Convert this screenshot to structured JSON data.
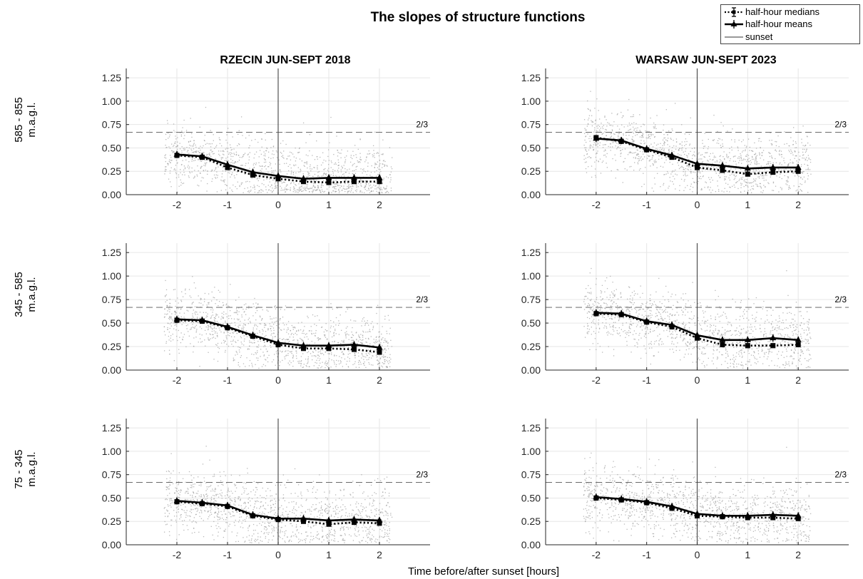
{
  "figure": {
    "title": "The slopes of structure functions",
    "xlabel": "Time before/after sunset [hours]",
    "column_titles": [
      "RZECIN JUN-SEPT 2018",
      "WARSAW JUN-SEPT 2023"
    ],
    "row_labels": [
      {
        "line1": "585 - 855",
        "line2": "m.a.g.l."
      },
      {
        "line1": "345 - 585",
        "line2": "m.a.g.l."
      },
      {
        "line1": "75 - 345",
        "line2": "m.a.g.l."
      }
    ],
    "legend": {
      "medians": "half-hour medians",
      "means": "half-hour means",
      "sunset": "sunset"
    },
    "reference_label": "2/3"
  },
  "chart_data": [
    {
      "type": "line",
      "panel": "RZECIN JUN-SEPT 2018 / 585 - 855 m.a.g.l.",
      "x": [
        -2,
        -1.5,
        -1,
        -0.5,
        0,
        0.5,
        1,
        1.5,
        2
      ],
      "series": [
        {
          "name": "half-hour means",
          "values": [
            0.43,
            0.41,
            0.32,
            0.24,
            0.2,
            0.17,
            0.18,
            0.18,
            0.18
          ]
        },
        {
          "name": "half-hour medians",
          "values": [
            0.42,
            0.4,
            0.29,
            0.21,
            0.17,
            0.14,
            0.13,
            0.14,
            0.14
          ]
        }
      ],
      "reference_lines": {
        "sunset_x": 0,
        "y": 0.6667
      },
      "xlim": [
        -3,
        3
      ],
      "ylim": [
        0,
        1.35
      ],
      "xticks": [
        "-2",
        "-1",
        "0",
        "1",
        "2"
      ],
      "yticks": [
        "0.00",
        "0.25",
        "0.50",
        "0.75",
        "1.00",
        "1.25"
      ],
      "grid": true
    },
    {
      "type": "line",
      "panel": "WARSAW JUN-SEPT 2023 / 585 - 855 m.a.g.l.",
      "x": [
        -2,
        -1.5,
        -1,
        -0.5,
        0,
        0.5,
        1,
        1.5,
        2
      ],
      "series": [
        {
          "name": "half-hour means",
          "values": [
            0.6,
            0.58,
            0.49,
            0.42,
            0.33,
            0.31,
            0.28,
            0.29,
            0.29
          ]
        },
        {
          "name": "half-hour medians",
          "values": [
            0.61,
            0.57,
            0.48,
            0.4,
            0.29,
            0.26,
            0.22,
            0.24,
            0.25
          ]
        }
      ],
      "reference_lines": {
        "sunset_x": 0,
        "y": 0.6667
      },
      "xlim": [
        -3,
        3
      ],
      "ylim": [
        0,
        1.35
      ],
      "xticks": [
        "-2",
        "-1",
        "0",
        "1",
        "2"
      ],
      "yticks": [
        "0.00",
        "0.25",
        "0.50",
        "0.75",
        "1.00",
        "1.25"
      ],
      "grid": true
    },
    {
      "type": "line",
      "panel": "RZECIN JUN-SEPT 2018 / 345 - 585 m.a.g.l.",
      "x": [
        -2,
        -1.5,
        -1,
        -0.5,
        0,
        0.5,
        1,
        1.5,
        2
      ],
      "series": [
        {
          "name": "half-hour means",
          "values": [
            0.54,
            0.53,
            0.46,
            0.37,
            0.29,
            0.26,
            0.26,
            0.27,
            0.24
          ]
        },
        {
          "name": "half-hour medians",
          "values": [
            0.53,
            0.52,
            0.45,
            0.36,
            0.27,
            0.23,
            0.23,
            0.22,
            0.19
          ]
        }
      ],
      "reference_lines": {
        "sunset_x": 0,
        "y": 0.6667
      },
      "xlim": [
        -3,
        3
      ],
      "ylim": [
        0,
        1.35
      ],
      "xticks": [
        "-2",
        "-1",
        "0",
        "1",
        "2"
      ],
      "yticks": [
        "0.00",
        "0.25",
        "0.50",
        "0.75",
        "1.00",
        "1.25"
      ],
      "grid": true
    },
    {
      "type": "line",
      "panel": "WARSAW JUN-SEPT 2023 / 345 - 585 m.a.g.l.",
      "x": [
        -2,
        -1.5,
        -1,
        -0.5,
        0,
        0.5,
        1,
        1.5,
        2
      ],
      "series": [
        {
          "name": "half-hour means",
          "values": [
            0.61,
            0.6,
            0.52,
            0.48,
            0.37,
            0.32,
            0.32,
            0.34,
            0.32
          ]
        },
        {
          "name": "half-hour medians",
          "values": [
            0.6,
            0.59,
            0.51,
            0.46,
            0.34,
            0.27,
            0.26,
            0.26,
            0.27
          ]
        }
      ],
      "reference_lines": {
        "sunset_x": 0,
        "y": 0.6667
      },
      "xlim": [
        -3,
        3
      ],
      "ylim": [
        0,
        1.35
      ],
      "xticks": [
        "-2",
        "-1",
        "0",
        "1",
        "2"
      ],
      "yticks": [
        "0.00",
        "0.25",
        "0.50",
        "0.75",
        "1.00",
        "1.25"
      ],
      "grid": true
    },
    {
      "type": "line",
      "panel": "RZECIN JUN-SEPT 2018 / 75 - 345 m.a.g.l.",
      "x": [
        -2,
        -1.5,
        -1,
        -0.5,
        0,
        0.5,
        1,
        1.5,
        2
      ],
      "series": [
        {
          "name": "half-hour means",
          "values": [
            0.47,
            0.45,
            0.42,
            0.32,
            0.28,
            0.28,
            0.26,
            0.27,
            0.26
          ]
        },
        {
          "name": "half-hour medians",
          "values": [
            0.46,
            0.44,
            0.41,
            0.31,
            0.27,
            0.25,
            0.22,
            0.24,
            0.23
          ]
        }
      ],
      "reference_lines": {
        "sunset_x": 0,
        "y": 0.6667
      },
      "xlim": [
        -3,
        3
      ],
      "ylim": [
        0,
        1.35
      ],
      "xticks": [
        "-2",
        "-1",
        "0",
        "1",
        "2"
      ],
      "yticks": [
        "0.00",
        "0.25",
        "0.50",
        "0.75",
        "1.00",
        "1.25"
      ],
      "grid": true
    },
    {
      "type": "line",
      "panel": "WARSAW JUN-SEPT 2023 / 75 - 345 m.a.g.l.",
      "x": [
        -2,
        -1.5,
        -1,
        -0.5,
        0,
        0.5,
        1,
        1.5,
        2
      ],
      "series": [
        {
          "name": "half-hour means",
          "values": [
            0.51,
            0.49,
            0.46,
            0.41,
            0.33,
            0.31,
            0.31,
            0.32,
            0.31
          ]
        },
        {
          "name": "half-hour medians",
          "values": [
            0.5,
            0.48,
            0.45,
            0.39,
            0.31,
            0.3,
            0.29,
            0.29,
            0.28
          ]
        }
      ],
      "reference_lines": {
        "sunset_x": 0,
        "y": 0.6667
      },
      "xlim": [
        -3,
        3
      ],
      "ylim": [
        0,
        1.35
      ],
      "xticks": [
        "-2",
        "-1",
        "0",
        "1",
        "2"
      ],
      "yticks": [
        "0.00",
        "0.25",
        "0.50",
        "0.75",
        "1.00",
        "1.25"
      ],
      "grid": true
    }
  ]
}
